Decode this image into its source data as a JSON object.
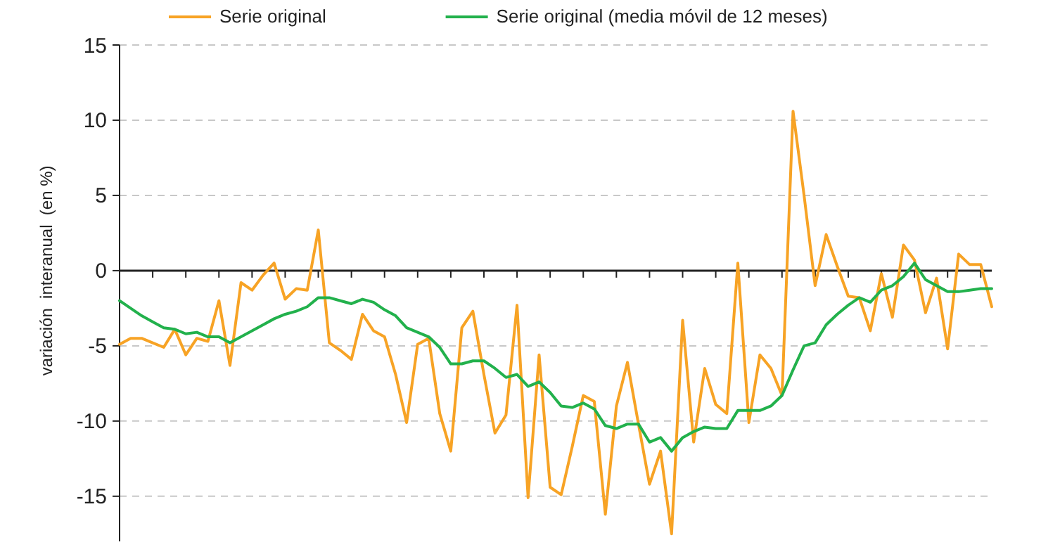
{
  "chart_data": {
    "type": "line",
    "ylabel": "variación  interanual  (en %)",
    "categories": [
      null,
      null,
      null,
      null,
      null,
      null,
      null,
      null,
      null,
      null,
      null,
      null,
      null,
      null,
      null,
      null,
      null,
      null,
      null,
      null,
      null,
      null,
      null,
      null,
      null,
      null,
      null,
      null,
      null,
      null,
      null,
      null,
      null,
      null,
      null,
      null,
      null,
      null,
      null,
      null,
      null,
      null,
      null,
      null,
      null,
      null,
      null,
      null,
      null,
      null,
      null,
      null,
      null,
      null,
      null,
      null,
      null,
      null,
      null,
      null,
      null,
      null,
      null,
      null,
      null,
      null,
      null,
      null,
      null,
      null,
      null,
      null,
      null,
      null,
      null,
      null,
      null,
      null,
      null,
      null
    ],
    "series": [
      {
        "name": "Serie original",
        "color": "#f7a325",
        "values": [
          -4.9,
          -4.5,
          -4.5,
          -4.8,
          -5.1,
          -3.9,
          -5.6,
          -4.5,
          -4.7,
          -2.0,
          -6.3,
          -0.8,
          -1.3,
          -0.3,
          0.5,
          -1.9,
          -1.2,
          -1.3,
          2.7,
          -4.8,
          -5.3,
          -5.9,
          -2.9,
          -4.0,
          -4.4,
          -6.9,
          -10.1,
          -4.9,
          -4.5,
          -9.5,
          -12.0,
          -3.8,
          -2.7,
          -6.9,
          -10.8,
          -9.6,
          -2.3,
          -15.1,
          -5.6,
          -14.4,
          -14.9,
          -11.7,
          -8.3,
          -8.7,
          -16.2,
          -9.0,
          -6.1,
          -10.2,
          -14.2,
          -12.0,
          -17.5,
          -3.3,
          -11.4,
          -6.5,
          -8.9,
          -9.5,
          0.5,
          -10.1,
          -5.6,
          -6.5,
          -8.3,
          10.6,
          5.0,
          -1.0,
          2.4,
          0.3,
          -1.7,
          -1.8,
          -4.0,
          -0.2,
          -3.1,
          1.7,
          0.7,
          -2.8,
          -0.5,
          -5.2,
          1.1,
          0.4,
          0.4,
          -2.4
        ]
      },
      {
        "name": "Serie original (media móvil de 12 meses)",
        "color": "#22b14c",
        "values": [
          -2.0,
          -2.5,
          -3.0,
          -3.4,
          -3.8,
          -3.9,
          -4.2,
          -4.1,
          -4.4,
          -4.4,
          -4.8,
          -4.4,
          -4.0,
          -3.6,
          -3.2,
          -2.9,
          -2.7,
          -2.4,
          -1.8,
          -1.8,
          -2.0,
          -2.2,
          -1.9,
          -2.1,
          -2.6,
          -3.0,
          -3.8,
          -4.1,
          -4.4,
          -5.1,
          -6.2,
          -6.2,
          -6.0,
          -6.0,
          -6.5,
          -7.1,
          -6.9,
          -7.7,
          -7.4,
          -8.1,
          -9.0,
          -9.1,
          -8.8,
          -9.2,
          -10.3,
          -10.5,
          -10.2,
          -10.2,
          -11.4,
          -11.1,
          -12.0,
          -11.1,
          -10.7,
          -10.4,
          -10.5,
          -10.5,
          -9.3,
          -9.3,
          -9.3,
          -9.0,
          -8.3,
          -6.6,
          -5.0,
          -4.8,
          -3.6,
          -2.9,
          -2.3,
          -1.8,
          -2.1,
          -1.3,
          -1.0,
          -0.4,
          0.5,
          -0.6,
          -1.0,
          -1.4,
          -1.4,
          -1.3,
          -1.2,
          -1.2
        ]
      }
    ],
    "ylim": [
      -18,
      15
    ],
    "yticks": [
      -15,
      -10,
      -5,
      0,
      5,
      10,
      15
    ],
    "grid": "y",
    "legend": "top",
    "marker": "none",
    "line_style": "solid"
  }
}
